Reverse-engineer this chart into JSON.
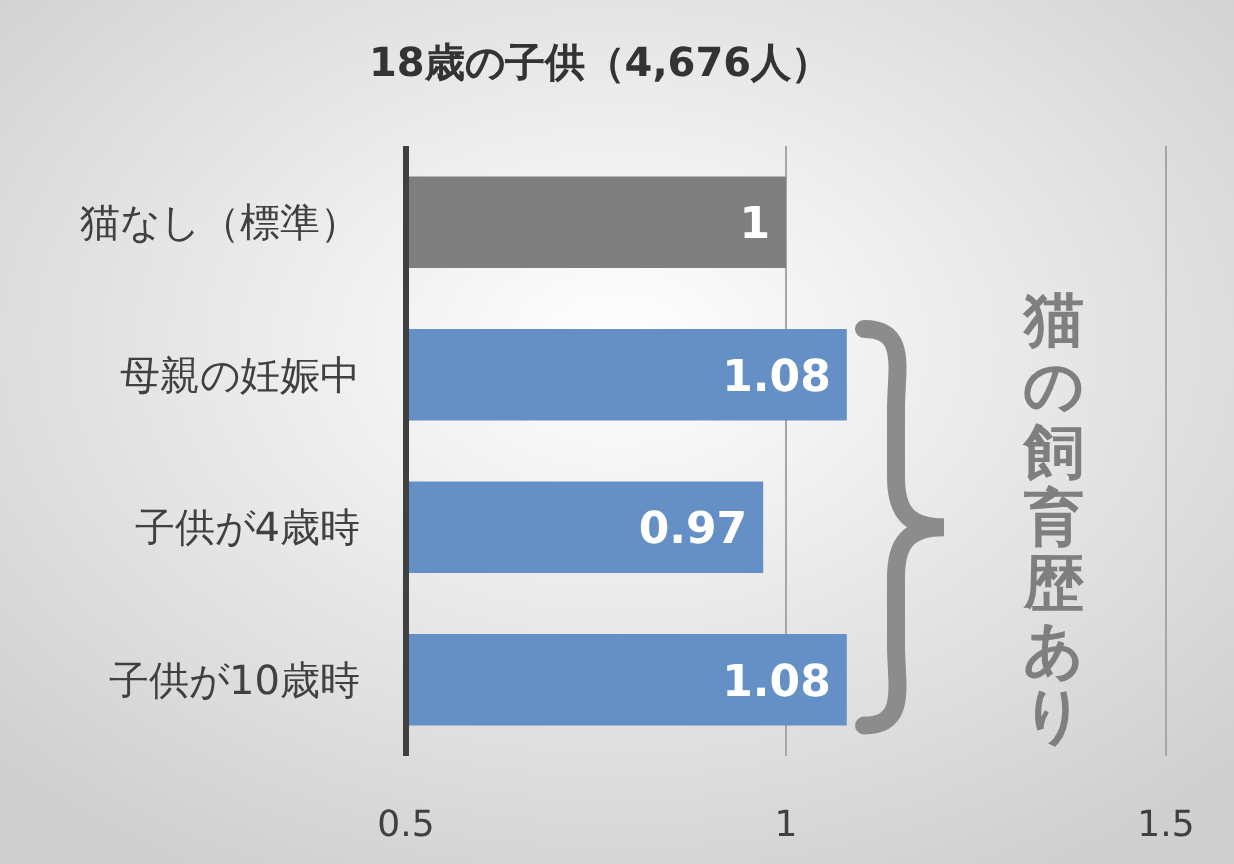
{
  "chart_data": {
    "type": "bar",
    "orientation": "horizontal",
    "title": "18歳の子供（4,676人）",
    "categories": [
      "猫なし（標準）",
      "母親の妊娠中",
      "子供が4歳時",
      "子供が10歳時"
    ],
    "values": [
      1,
      1.08,
      0.97,
      1.08
    ],
    "colors": [
      "#7f7f7f",
      "#6590c6",
      "#6590c6",
      "#6590c6"
    ],
    "xlim": [
      0.5,
      1.5
    ],
    "xticks": [
      0.5,
      1,
      1.5
    ],
    "grid": "x",
    "data_labels": true,
    "annotations": [
      "猫の飼育歴あり"
    ]
  }
}
